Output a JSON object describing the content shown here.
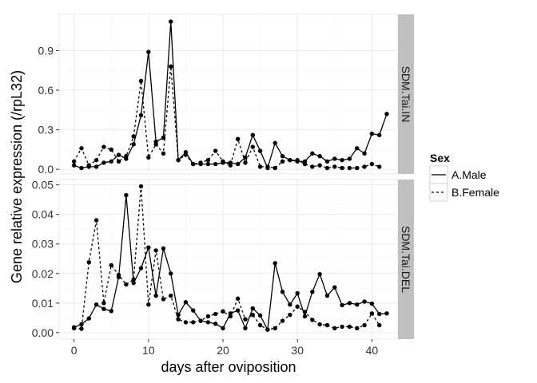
{
  "chart_data": {
    "type": "line",
    "xlabel": "days after oviposition",
    "ylabel": "Gene relative expression (/rpL32)",
    "xlim": [
      -2,
      43.5
    ],
    "x_ticks": [
      0,
      10,
      20,
      30,
      40
    ],
    "legend": {
      "title": "Sex",
      "placement": "right",
      "entries": [
        "A.Male",
        "B.Female"
      ]
    },
    "grid": true,
    "colors": {
      "panel_bg": "#ffffff",
      "grid": "#ebebeb",
      "strip_bg": "#c0c0c0",
      "line": "#000000"
    },
    "panels": [
      {
        "strip": "SDM.Tai.IN",
        "ylim": [
          -0.035,
          1.175
        ],
        "y_ticks": [
          0.0,
          0.3,
          0.6,
          0.9
        ],
        "y_tick_labels": [
          "0.0",
          "0.3",
          "0.6",
          "0.9"
        ],
        "series": [
          {
            "name": "A.Male",
            "dash": "solid",
            "x": [
              0,
              1,
              2,
              3,
              4,
              5,
              6,
              7,
              8,
              9,
              10,
              11,
              12,
              13,
              14,
              15,
              16,
              17,
              18,
              19,
              20,
              21,
              22,
              23,
              24,
              25,
              26,
              27,
              28,
              29,
              30,
              31,
              32,
              33,
              34,
              35,
              36,
              37,
              38,
              39,
              40,
              41,
              42
            ],
            "y": [
              0.03,
              0.01,
              0.02,
              0.02,
              0.05,
              0.06,
              0.11,
              0.08,
              0.19,
              0.41,
              0.89,
              0.21,
              0.24,
              1.12,
              0.07,
              0.13,
              0.04,
              0.04,
              0.04,
              0.04,
              0.05,
              0.05,
              0.04,
              0.09,
              0.26,
              0.14,
              0.01,
              0.2,
              0.1,
              0.07,
              0.06,
              0.06,
              0.12,
              0.1,
              0.06,
              0.08,
              0.07,
              0.08,
              0.16,
              0.12,
              0.27,
              0.26,
              0.42
            ]
          },
          {
            "name": "B.Female",
            "dash": "dashed",
            "x": [
              0,
              1,
              2,
              3,
              4,
              5,
              6,
              7,
              8,
              9,
              10,
              11,
              12,
              13,
              14,
              15,
              16,
              17,
              18,
              19,
              20,
              21,
              22,
              23,
              24,
              25,
              26,
              27,
              28,
              29,
              30,
              31,
              32,
              33,
              34,
              35,
              36,
              37,
              38,
              39,
              40,
              41
            ],
            "y": [
              0.06,
              0.16,
              0.03,
              0.07,
              0.17,
              0.15,
              0.06,
              0.1,
              0.25,
              0.67,
              0.09,
              0.19,
              0.12,
              0.78,
              0.07,
              0.11,
              0.04,
              0.05,
              0.07,
              0.14,
              0.06,
              0.03,
              0.23,
              0.05,
              0.17,
              0.02,
              0.02,
              0.01,
              0.06,
              0.07,
              0.07,
              0.04,
              0.02,
              0.03,
              0.01,
              0.02,
              0.01,
              0.01,
              0.01,
              0.02,
              0.04,
              0.02
            ]
          }
        ]
      },
      {
        "strip": "SDM.Tai.DEL",
        "ylim": [
          -0.0022,
          0.0518
        ],
        "y_ticks": [
          0.0,
          0.01,
          0.02,
          0.03,
          0.04,
          0.05
        ],
        "y_tick_labels": [
          "0.00",
          "0.01",
          "0.02",
          "0.03",
          "0.04",
          "0.05"
        ],
        "series": [
          {
            "name": "A.Male",
            "dash": "solid",
            "x": [
              0,
              1,
              2,
              3,
              4,
              5,
              6,
              7,
              8,
              9,
              10,
              11,
              12,
              13,
              14,
              15,
              16,
              17,
              18,
              19,
              20,
              21,
              22,
              23,
              24,
              25,
              26,
              27,
              28,
              29,
              30,
              31,
              32,
              33,
              34,
              35,
              36,
              37,
              38,
              39,
              40,
              41,
              42
            ],
            "y": [
              0.0018,
              0.0028,
              0.0048,
              0.0095,
              0.008,
              0.0073,
              0.0188,
              0.0465,
              0.0168,
              0.0218,
              0.0288,
              0.0125,
              0.0285,
              0.02,
              0.006,
              0.0103,
              0.0075,
              0.004,
              0.0035,
              0.003,
              0.0015,
              0.0065,
              0.0075,
              0.0015,
              0.0082,
              0.0058,
              0.001,
              0.0235,
              0.0138,
              0.0095,
              0.0133,
              0.0055,
              0.0138,
              0.0198,
              0.0125,
              0.0153,
              0.0093,
              0.01,
              0.0095,
              0.0105,
              0.0098,
              0.0063,
              0.0065
            ]
          },
          {
            "name": "B.Female",
            "dash": "dashed",
            "x": [
              0,
              1,
              2,
              3,
              4,
              5,
              6,
              7,
              8,
              9,
              10,
              11,
              12,
              13,
              14,
              15,
              16,
              17,
              18,
              19,
              20,
              21,
              22,
              23,
              24,
              25,
              26,
              27,
              28,
              29,
              30,
              31,
              32,
              33,
              34,
              35,
              36,
              37,
              38,
              39,
              40,
              41
            ],
            "y": [
              0.0015,
              0.0013,
              0.0238,
              0.038,
              0.01,
              0.0228,
              0.0195,
              0.0163,
              0.018,
              0.0495,
              0.0095,
              0.0278,
              0.0113,
              0.0125,
              0.0045,
              0.0035,
              0.0035,
              0.004,
              0.0055,
              0.0063,
              0.0072,
              0.0055,
              0.0115,
              0.0045,
              0.006,
              0.0025,
              0.001,
              0.0015,
              0.004,
              0.006,
              0.0088,
              0.007,
              0.0043,
              0.0028,
              0.0025,
              0.0015,
              0.002,
              0.002,
              0.0015,
              0.0025,
              0.0065,
              0.0025
            ]
          }
        ]
      }
    ]
  }
}
